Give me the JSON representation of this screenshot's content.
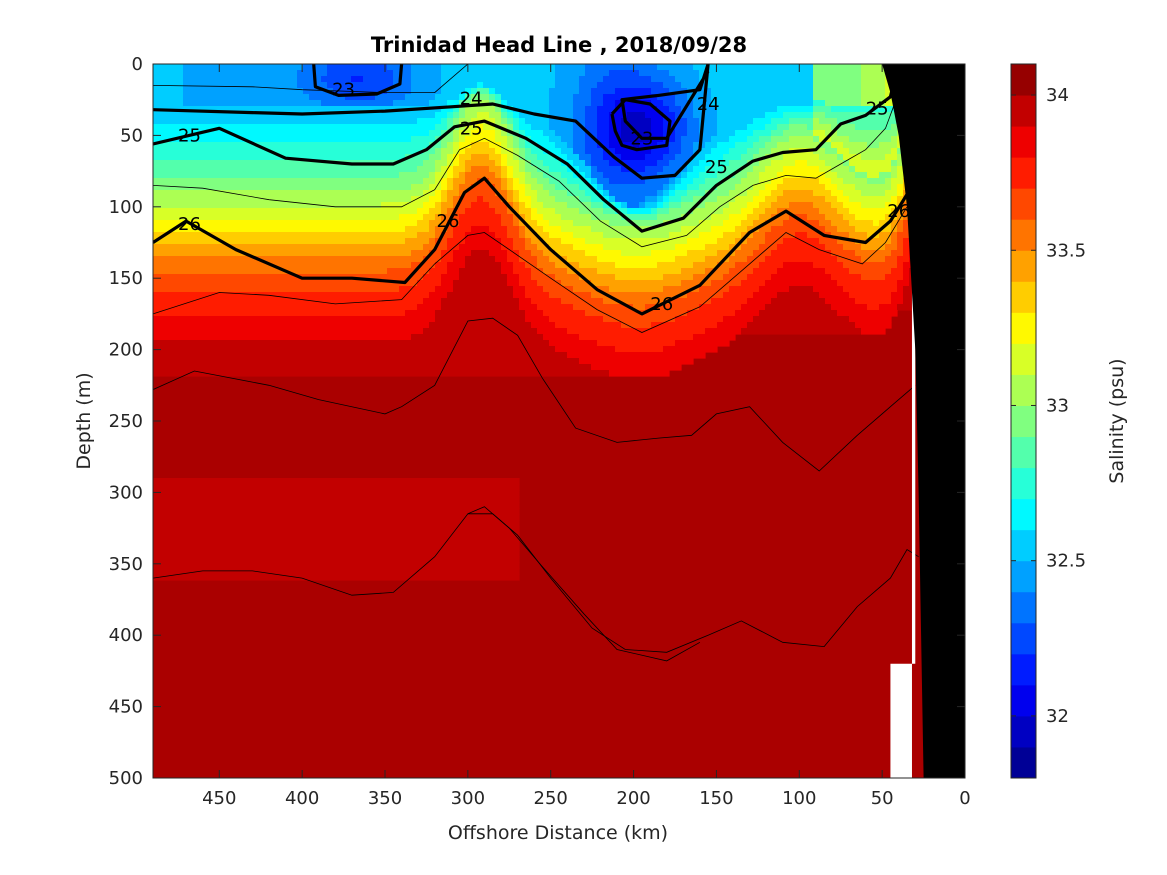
{
  "chart_data": {
    "type": "heatmap",
    "subtype": "filled-contour-section",
    "title": "Trinidad Head Line , 2018/09/28",
    "xlabel": "Offshore Distance (km)",
    "ylabel": "Depth (m)",
    "xlim": [
      490,
      0
    ],
    "x_reversed": true,
    "ylim": [
      0,
      500
    ],
    "y_reversed": true,
    "x_ticks": [
      "450",
      "400",
      "350",
      "300",
      "250",
      "200",
      "150",
      "100",
      "50",
      "0"
    ],
    "y_ticks": [
      "0",
      "50",
      "100",
      "150",
      "200",
      "250",
      "300",
      "350",
      "400",
      "450",
      "500"
    ],
    "colorbar": {
      "label": "Salinity (psu)",
      "range": [
        31.8,
        34.1
      ],
      "ticks": [
        "32",
        "32.5",
        "33",
        "33.5",
        "34"
      ],
      "colormap": "jet",
      "levels": 23
    },
    "density_contours": {
      "levels": [
        23,
        24,
        25,
        26
      ],
      "labels": [
        {
          "text": "23",
          "x": 375,
          "depth": 18
        },
        {
          "text": "23",
          "x": 195,
          "depth": 52
        },
        {
          "text": "24",
          "x": 298,
          "depth": 24
        },
        {
          "text": "24",
          "x": 155,
          "depth": 28
        },
        {
          "text": "25",
          "x": 468,
          "depth": 50
        },
        {
          "text": "25",
          "x": 298,
          "depth": 45
        },
        {
          "text": "25",
          "x": 150,
          "depth": 72
        },
        {
          "text": "25",
          "x": 53,
          "depth": 31
        },
        {
          "text": "26",
          "x": 468,
          "depth": 112
        },
        {
          "text": "26",
          "x": 312,
          "depth": 110
        },
        {
          "text": "26",
          "x": 183,
          "depth": 168
        },
        {
          "text": "26",
          "x": 40,
          "depth": 103
        }
      ],
      "iso_23": [
        [
          [
            393,
            0
          ],
          [
            392,
            16
          ],
          [
            378,
            22
          ],
          [
            355,
            21
          ],
          [
            341,
            14
          ],
          [
            340,
            0
          ]
        ],
        [
          [
            213,
            35
          ],
          [
            211,
            47
          ],
          [
            207,
            57
          ],
          [
            198,
            60
          ],
          [
            180,
            57
          ],
          [
            178,
            40
          ],
          [
            190,
            28
          ],
          [
            205,
            25
          ],
          [
            213,
            35
          ]
        ]
      ],
      "iso_24": [
        [
          [
            155,
            0
          ],
          [
            160,
            18
          ],
          [
            185,
            22
          ],
          [
            207,
            25
          ],
          [
            205,
            40
          ],
          [
            195,
            52
          ],
          [
            180,
            52
          ],
          [
            155,
            5
          ]
        ],
        [
          [
            490,
            32
          ],
          [
            430,
            34
          ],
          [
            400,
            35
          ],
          [
            350,
            33
          ],
          [
            310,
            30
          ],
          [
            285,
            28
          ],
          [
            260,
            35
          ],
          [
            235,
            40
          ],
          [
            212,
            65
          ],
          [
            195,
            80
          ],
          [
            175,
            78
          ],
          [
            160,
            60
          ],
          [
            155,
            0
          ]
        ]
      ],
      "iso_25": [
        [
          [
            490,
            56
          ],
          [
            450,
            45
          ],
          [
            410,
            66
          ],
          [
            370,
            70
          ],
          [
            345,
            70
          ],
          [
            325,
            60
          ],
          [
            308,
            44
          ],
          [
            290,
            40
          ],
          [
            265,
            52
          ],
          [
            240,
            70
          ],
          [
            218,
            95
          ],
          [
            195,
            117
          ],
          [
            170,
            108
          ],
          [
            150,
            85
          ],
          [
            128,
            68
          ],
          [
            110,
            62
          ],
          [
            90,
            60
          ],
          [
            75,
            42
          ],
          [
            60,
            36
          ],
          [
            45,
            23
          ],
          [
            40,
            0
          ]
        ]
      ],
      "iso_26": [
        [
          [
            490,
            125
          ],
          [
            470,
            110
          ],
          [
            440,
            130
          ],
          [
            400,
            150
          ],
          [
            370,
            150
          ],
          [
            338,
            153
          ],
          [
            320,
            130
          ],
          [
            302,
            90
          ],
          [
            290,
            80
          ],
          [
            275,
            100
          ],
          [
            250,
            130
          ],
          [
            222,
            158
          ],
          [
            195,
            175
          ],
          [
            160,
            155
          ],
          [
            130,
            118
          ],
          [
            108,
            103
          ],
          [
            85,
            120
          ],
          [
            60,
            125
          ],
          [
            45,
            110
          ],
          [
            30,
            82
          ],
          [
            25,
            55
          ],
          [
            18,
            38
          ]
        ]
      ]
    },
    "salinity_isolines": [
      [
        [
          490,
          15
        ],
        [
          430,
          16
        ],
        [
          400,
          18
        ],
        [
          350,
          20
        ],
        [
          320,
          20
        ],
        [
          300,
          0
        ]
      ],
      [
        [
          490,
          85
        ],
        [
          460,
          87
        ],
        [
          420,
          95
        ],
        [
          380,
          100
        ],
        [
          340,
          100
        ],
        [
          320,
          88
        ],
        [
          305,
          60
        ],
        [
          290,
          52
        ],
        [
          270,
          64
        ],
        [
          245,
          82
        ],
        [
          220,
          110
        ],
        [
          195,
          128
        ],
        [
          168,
          120
        ],
        [
          148,
          100
        ],
        [
          128,
          85
        ],
        [
          108,
          78
        ],
        [
          90,
          80
        ],
        [
          75,
          70
        ],
        [
          60,
          60
        ],
        [
          48,
          45
        ],
        [
          40,
          20
        ],
        [
          35,
          0
        ]
      ],
      [
        [
          490,
          175
        ],
        [
          450,
          160
        ],
        [
          420,
          162
        ],
        [
          380,
          168
        ],
        [
          340,
          165
        ],
        [
          320,
          140
        ],
        [
          300,
          120
        ],
        [
          290,
          118
        ],
        [
          275,
          130
        ],
        [
          250,
          150
        ],
        [
          222,
          172
        ],
        [
          195,
          188
        ],
        [
          160,
          170
        ],
        [
          130,
          140
        ],
        [
          108,
          118
        ],
        [
          88,
          130
        ],
        [
          62,
          140
        ],
        [
          48,
          125
        ],
        [
          35,
          100
        ]
      ],
      [
        [
          490,
          228
        ],
        [
          465,
          215
        ],
        [
          420,
          225
        ],
        [
          390,
          235
        ],
        [
          350,
          245
        ],
        [
          340,
          240
        ],
        [
          320,
          225
        ],
        [
          300,
          180
        ],
        [
          285,
          178
        ],
        [
          270,
          190
        ],
        [
          255,
          220
        ],
        [
          235,
          255
        ],
        [
          210,
          265
        ],
        [
          185,
          262
        ],
        [
          165,
          260
        ],
        [
          150,
          245
        ],
        [
          130,
          240
        ],
        [
          110,
          265
        ],
        [
          88,
          285
        ],
        [
          65,
          260
        ],
        [
          45,
          240
        ],
        [
          30,
          225
        ]
      ],
      [
        [
          490,
          360
        ],
        [
          460,
          355
        ],
        [
          430,
          355
        ],
        [
          400,
          360
        ],
        [
          370,
          372
        ],
        [
          345,
          370
        ],
        [
          320,
          345
        ],
        [
          300,
          315
        ],
        [
          285,
          315
        ],
        [
          270,
          330
        ],
        [
          250,
          360
        ],
        [
          225,
          395
        ],
        [
          205,
          410
        ],
        [
          180,
          412
        ],
        [
          155,
          400
        ],
        [
          135,
          390
        ],
        [
          110,
          405
        ],
        [
          85,
          408
        ],
        [
          65,
          380
        ],
        [
          45,
          360
        ],
        [
          35,
          340
        ],
        [
          28,
          345
        ]
      ],
      [
        [
          300,
          315
        ],
        [
          290,
          310
        ],
        [
          275,
          325
        ],
        [
          255,
          352
        ],
        [
          230,
          385
        ],
        [
          210,
          410
        ],
        [
          180,
          418
        ],
        [
          160,
          405
        ]
      ]
    ],
    "coastline": [
      [
        17,
        0
      ],
      [
        0,
        0
      ],
      [
        0,
        500
      ],
      [
        25,
        500
      ],
      [
        28,
        300
      ],
      [
        30,
        200
      ],
      [
        35,
        100
      ],
      [
        40,
        50
      ],
      [
        45,
        20
      ],
      [
        50,
        0
      ]
    ]
  }
}
